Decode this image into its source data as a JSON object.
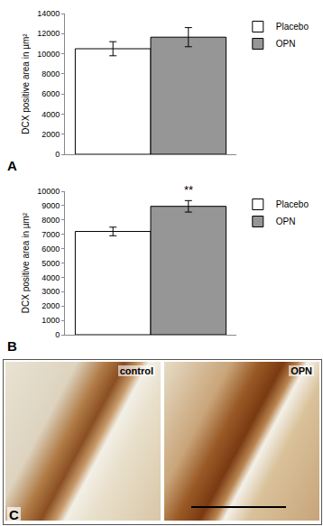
{
  "chart_data": [
    {
      "type": "bar",
      "panel": "A",
      "ylabel": "DCX positive area in µm²",
      "categories": [
        null
      ],
      "series": [
        {
          "name": "Placebo",
          "color": "#ffffff",
          "values": [
            10500
          ],
          "error": [
            700
          ]
        },
        {
          "name": "OPN",
          "color": "#969696",
          "values": [
            11650
          ],
          "error": [
            950
          ]
        }
      ],
      "ylim": [
        0,
        14000
      ],
      "yticks": [
        0,
        2000,
        4000,
        6000,
        8000,
        10000,
        12000,
        14000
      ],
      "grid": false,
      "legend": "top right",
      "tick_labels": "y"
    },
    {
      "type": "bar",
      "panel": "B",
      "ylabel": "DCX positive area in µm²",
      "categories": [
        null
      ],
      "series": [
        {
          "name": "Placebo",
          "color": "#ffffff",
          "values": [
            7200
          ],
          "error": [
            300
          ]
        },
        {
          "name": "OPN",
          "color": "#969696",
          "values": [
            8950
          ],
          "error": [
            400
          ]
        }
      ],
      "annotations": [
        {
          "text": "**",
          "series": "OPN",
          "category": 0
        }
      ],
      "ylim": [
        0,
        10000
      ],
      "yticks": [
        0,
        1000,
        2000,
        3000,
        4000,
        5000,
        6000,
        7000,
        8000,
        9000,
        10000
      ],
      "grid": false,
      "legend": "top right",
      "tick_labels": "y"
    }
  ],
  "image_panel": {
    "panel": "C",
    "images": [
      {
        "label": "control"
      },
      {
        "label": "OPN"
      }
    ]
  }
}
